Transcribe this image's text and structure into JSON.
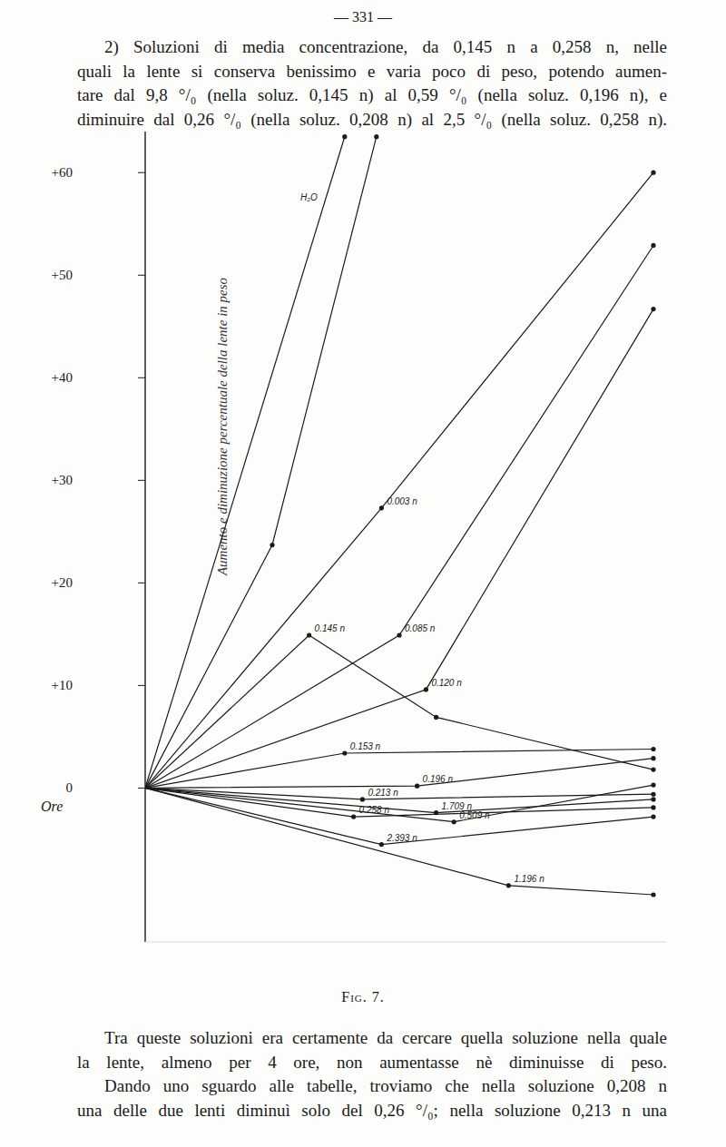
{
  "page_number": "— 331 —",
  "paragraphs_top": [
    [
      "2) Soluzioni di media concentrazione, da 0,145 n a 0,258 n, nelle",
      "quali la lente si conserva benissimo e varia poco di peso, potendo aumen-",
      "tare dal 9,8 °/₀ (nella soluz. 0,145 n) al 0,59 °/₀ (nella soluz. 0,196 n), e",
      "diminuire dal 0,26 °/₀ (nella soluz. 0,208 n) al 2,5 °/₀ (nella soluz. 0,258 n)."
    ]
  ],
  "chart_data": {
    "type": "line",
    "x_label": "Ore",
    "y_label": "Aumento e diminuzione percentuale della lente in peso",
    "xlim": [
      0,
      4.1
    ],
    "ylim": [
      -15,
      64
    ],
    "yticks": [
      0,
      {
        "value": 10,
        "label": "+10"
      },
      {
        "value": 20,
        "label": "+20"
      },
      {
        "value": 30,
        "label": "+30"
      },
      {
        "value": 40,
        "label": "+40"
      },
      {
        "value": 50,
        "label": "+50"
      },
      {
        "value": 60,
        "label": "+60"
      }
    ],
    "tick_labels": "y",
    "marker": "dot",
    "color": "#1a1a1a",
    "series": [
      {
        "name": "H₂O",
        "x": [
          0,
          1.57
        ],
        "values": [
          0,
          63.5
        ]
      },
      {
        "name": null,
        "x": [
          0,
          1.0,
          1.82
        ],
        "values": [
          0,
          23.7,
          63.5
        ]
      },
      {
        "name": "0.003 n",
        "x": [
          0,
          1.86,
          4
        ],
        "values": [
          0,
          27.3,
          60.0
        ]
      },
      {
        "name": "0.085 n",
        "x": [
          0,
          2.0,
          4
        ],
        "values": [
          0,
          14.9,
          52.9
        ]
      },
      {
        "name": "0.120 n",
        "x": [
          0,
          2.21,
          4
        ],
        "values": [
          0,
          9.6,
          46.7
        ]
      },
      {
        "name": "0.145 n",
        "x": [
          0,
          1.29,
          2.29,
          4
        ],
        "values": [
          0,
          14.9,
          6.9,
          1.8
        ]
      },
      {
        "name": "0.153 n",
        "x": [
          0,
          1.57,
          4
        ],
        "values": [
          0,
          3.4,
          3.8
        ]
      },
      {
        "name": "0.196 n",
        "x": [
          0,
          2.14,
          4
        ],
        "values": [
          0,
          0.2,
          2.9
        ]
      },
      {
        "name": "0.213 n",
        "x": [
          0,
          1.71,
          4
        ],
        "values": [
          0,
          -1.1,
          -0.6
        ]
      },
      {
        "name": "1.709 n",
        "x": [
          0,
          2.29,
          4
        ],
        "values": [
          0,
          -2.4,
          -1.1
        ]
      },
      {
        "name": "0.258 n",
        "x": [
          0,
          1.64,
          4
        ],
        "values": [
          0,
          -2.8,
          -1.9
        ]
      },
      {
        "name": "0.509 n",
        "x": [
          0,
          2.43,
          4
        ],
        "values": [
          0,
          -3.3,
          0.3
        ]
      },
      {
        "name": "2.393 n",
        "x": [
          0,
          1.86,
          4
        ],
        "values": [
          0,
          -5.5,
          -2.8
        ]
      },
      {
        "name": "1.196 n",
        "x": [
          0,
          2.86,
          4
        ],
        "values": [
          0,
          -9.5,
          -10.4
        ]
      }
    ]
  },
  "caption": "Fig. 7.",
  "paragraphs_bottom": [
    [
      "Tra queste soluzioni era certamente da cercare quella soluzione nella quale",
      "la lente, almeno per 4 ore, non aumentasse nè diminuisse di peso."
    ],
    [
      "Dando uno sguardo alle tabelle, troviamo che nella soluzione 0,208 n",
      "una delle due lenti diminuì solo del 0,26 °/₀; nella soluzione 0,213 n una"
    ]
  ]
}
